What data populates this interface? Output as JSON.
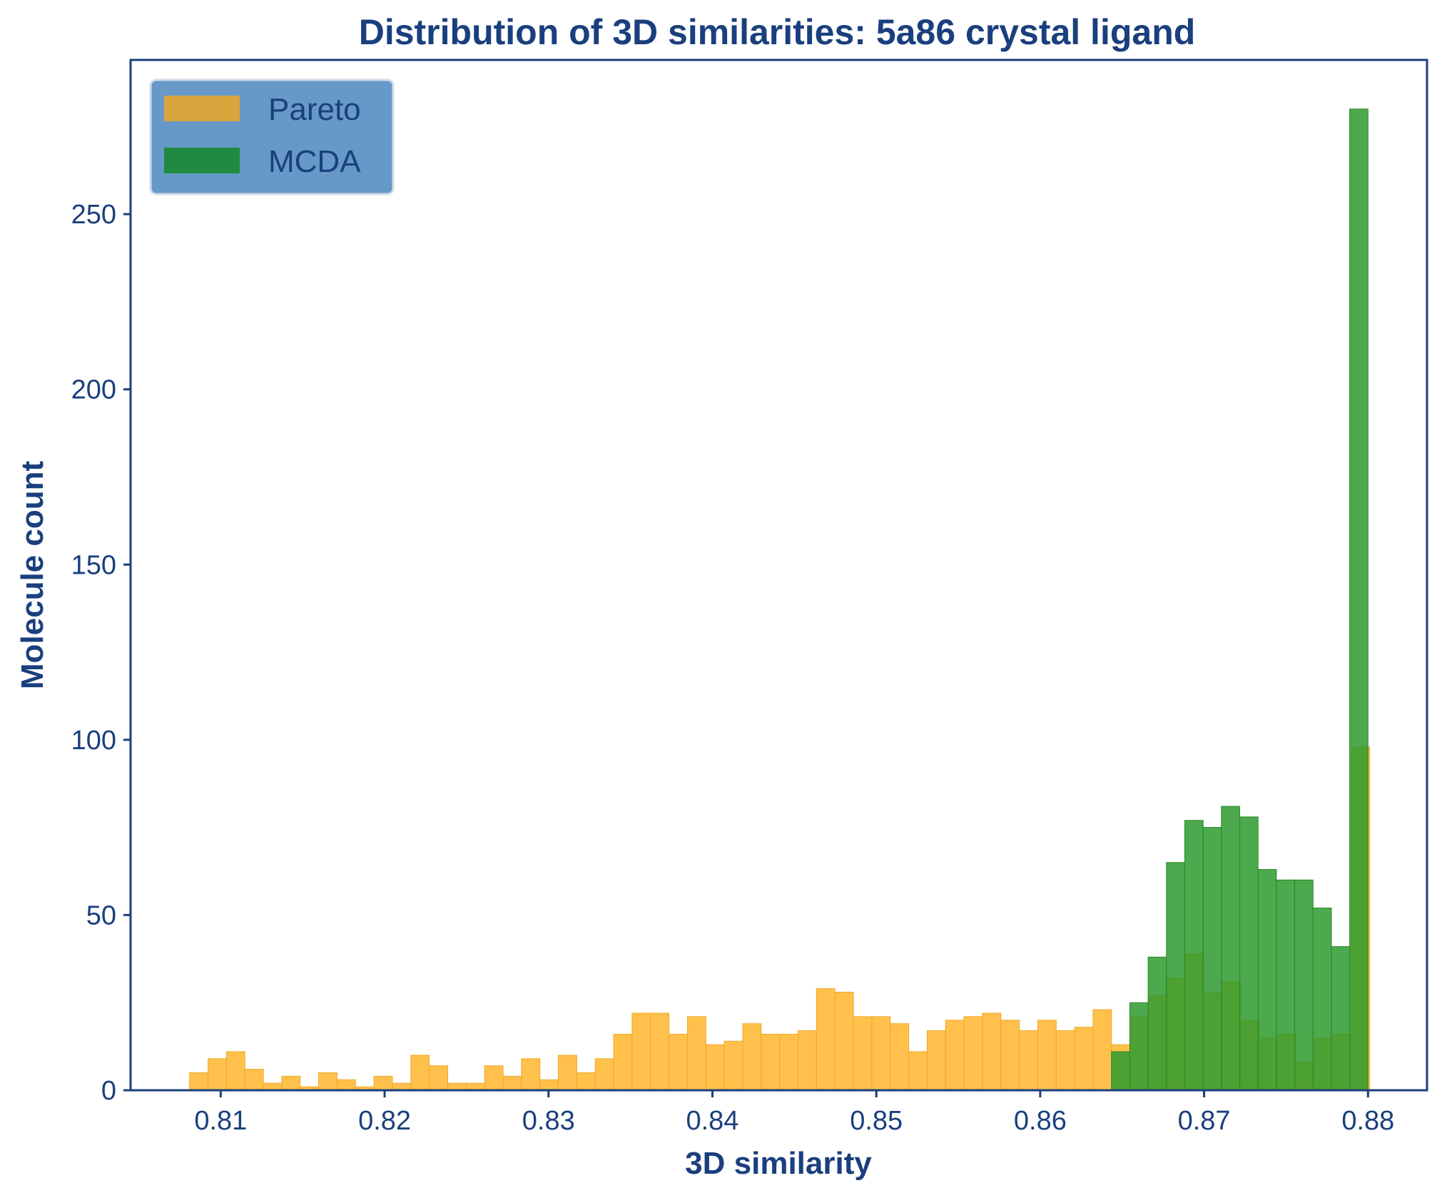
{
  "colors": {
    "text": "#1a3f7e",
    "axes": "#1a3f7e",
    "pareto": "#ffb833",
    "pareto_edge": "#f0a828",
    "mcda": "#2e9a2e",
    "mcda_edge": "#258a25",
    "legend_bg": "#6699c8",
    "legend_edge": "#cfdcea",
    "legend_pareto": "#d8a63c",
    "legend_mcda": "#208a40"
  },
  "chart_data": {
    "type": "histogram",
    "title": "Distribution of 3D similarities: 5a86 crystal ligand",
    "xlabel": "3D similarity",
    "ylabel": "Molecule count",
    "xlim": [
      0.8045,
      0.8836
    ],
    "ylim": [
      0,
      294
    ],
    "xticks": [
      0.81,
      0.82,
      0.83,
      0.84,
      0.85,
      0.86,
      0.87,
      0.88
    ],
    "xtick_labels": [
      "0.81",
      "0.82",
      "0.83",
      "0.84",
      "0.85",
      "0.86",
      "0.87",
      "0.88"
    ],
    "yticks": [
      0,
      50,
      100,
      150,
      200,
      250
    ],
    "ytick_labels": [
      "0",
      "50",
      "100",
      "150",
      "200",
      "250"
    ],
    "legend": {
      "position": "top-left",
      "entries": [
        "Pareto",
        "MCDA"
      ]
    },
    "series": [
      {
        "name": "Pareto",
        "bin_start": 0.8081,
        "bin_width": 0.001125,
        "values": [
          5,
          9,
          11,
          6,
          2,
          4,
          1,
          5,
          3,
          1,
          4,
          2,
          10,
          7,
          2,
          2,
          7,
          4,
          9,
          3,
          10,
          5,
          9,
          16,
          22,
          22,
          16,
          21,
          13,
          14,
          19,
          16,
          16,
          17,
          29,
          28,
          21,
          21,
          19,
          11,
          17,
          20,
          21,
          22,
          20,
          17,
          20,
          17,
          18,
          23,
          13,
          21,
          27,
          32,
          39,
          28,
          31,
          20,
          15,
          16,
          8,
          15,
          16,
          98
        ]
      },
      {
        "name": "MCDA",
        "bin_start": 0.864348,
        "bin_width": 0.001118,
        "values": [
          11,
          25,
          38,
          65,
          77,
          75,
          81,
          78,
          63,
          60,
          60,
          52,
          41,
          280
        ]
      }
    ]
  }
}
